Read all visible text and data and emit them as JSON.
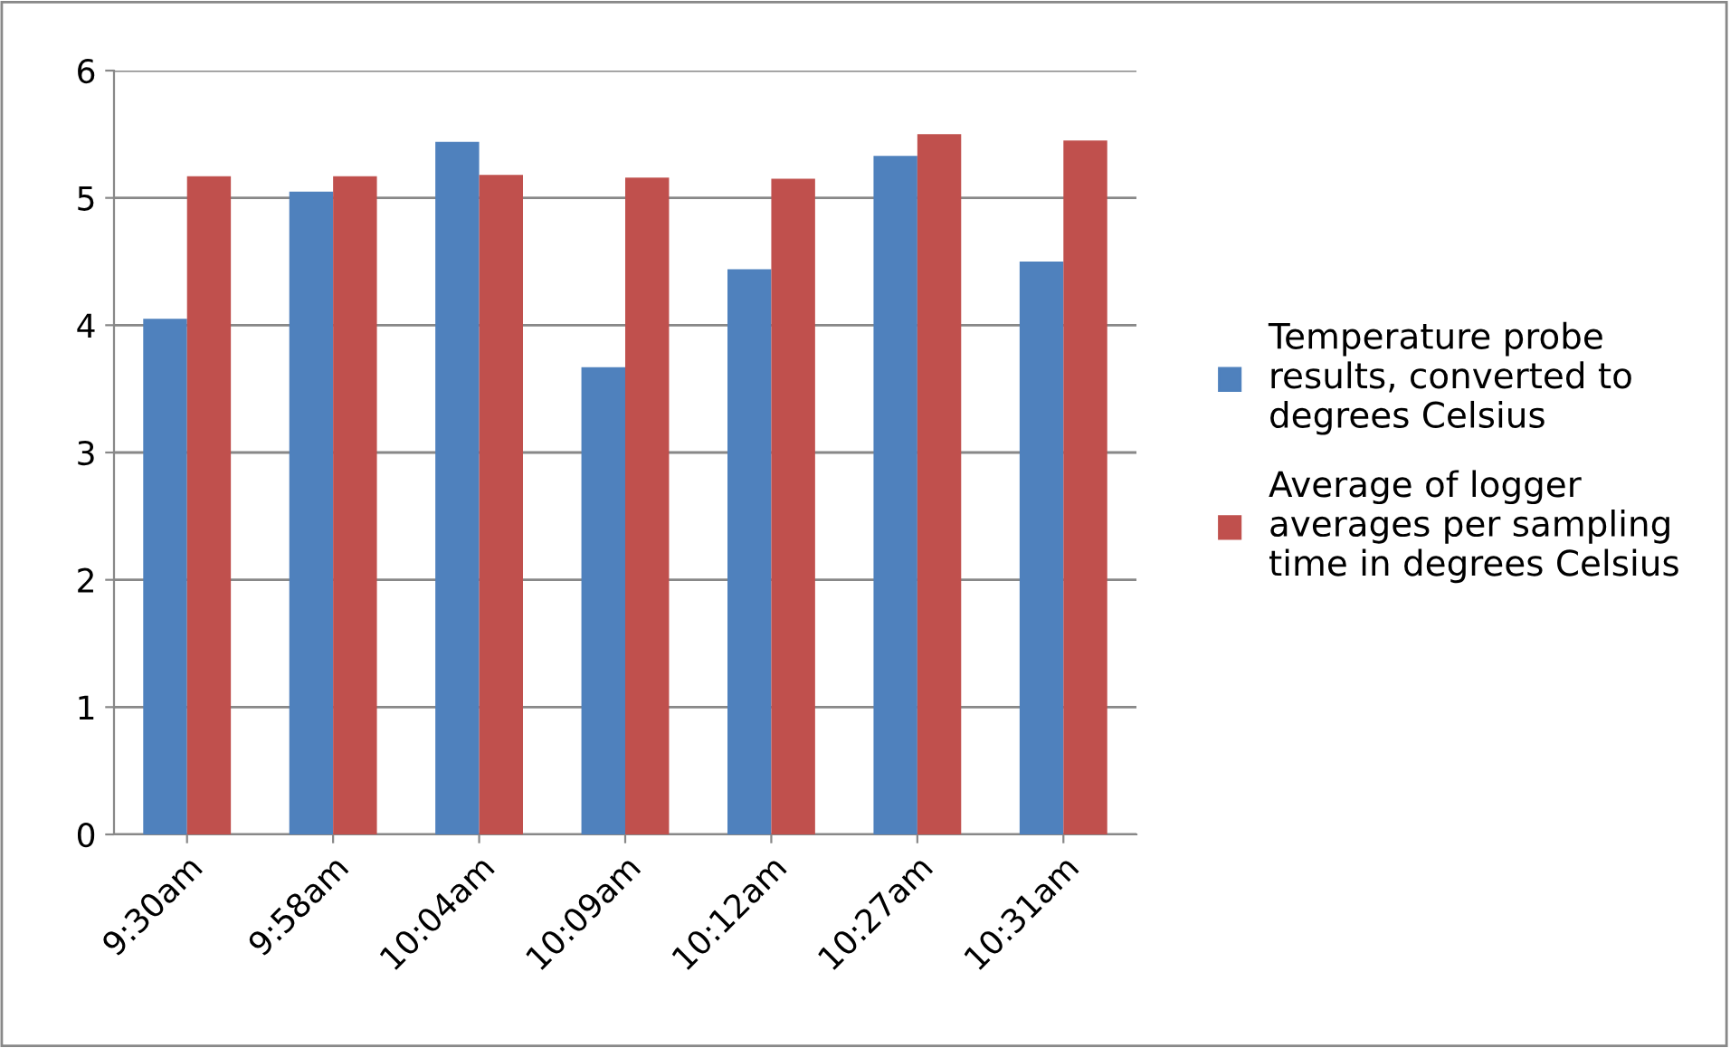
{
  "chart_data": {
    "type": "bar",
    "categories": [
      "9:30am",
      "9:58am",
      "10:04am",
      "10:09am",
      "10:12am",
      "10:27am",
      "10:31am"
    ],
    "series": [
      {
        "name": "Temperature probe results, converted to degrees Celsius",
        "color": "#4f81bd",
        "values": [
          4.05,
          5.05,
          5.44,
          3.67,
          4.44,
          5.33,
          4.5
        ]
      },
      {
        "name": "Average of logger averages per sampling time in degrees Celsius",
        "color": "#c0504d",
        "values": [
          5.17,
          5.17,
          5.18,
          5.16,
          5.15,
          5.5,
          5.45
        ]
      }
    ],
    "ylim": [
      0,
      6
    ],
    "yticks": [
      0,
      1,
      2,
      3,
      4,
      5,
      6
    ],
    "grid": "y",
    "legend": "right"
  }
}
